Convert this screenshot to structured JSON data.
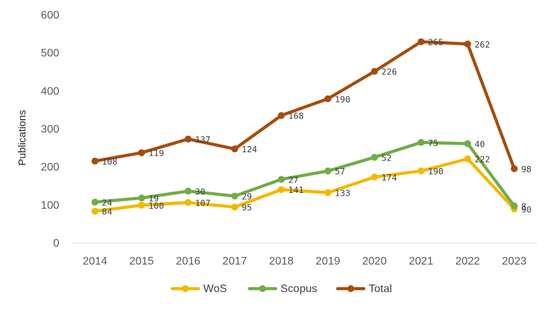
{
  "chart_data": {
    "type": "line",
    "title": "",
    "xlabel": "",
    "ylabel": "Publications",
    "ylim": [
      0,
      600
    ],
    "yticks": [
      0,
      100,
      200,
      300,
      400,
      500,
      600
    ],
    "grid": false,
    "legend": "bottom",
    "categories": [
      "2014",
      "2015",
      "2016",
      "2017",
      "2018",
      "2019",
      "2020",
      "2021",
      "2022",
      "2023"
    ],
    "series": [
      {
        "name": "WoS",
        "color": "#F2B800",
        "values": [
          84,
          100,
          107,
          95,
          141,
          133,
          174,
          190,
          222,
          90
        ],
        "labels": [
          "84",
          "100",
          "107",
          "95",
          "141",
          "133",
          "174",
          "190",
          "222",
          "90"
        ]
      },
      {
        "name": "Scopus",
        "color": "#70AD47",
        "values": [
          108,
          119,
          137,
          124,
          168,
          190,
          226,
          265,
          262,
          98
        ],
        "labels": [
          "24",
          "19",
          "30",
          "29",
          "27",
          "57",
          "52",
          "75",
          "40",
          "8"
        ]
      },
      {
        "name": "Total",
        "color": "#A64B0F",
        "values": [
          216,
          238,
          274,
          248,
          336,
          380,
          452,
          530,
          524,
          196
        ],
        "labels": [
          "108",
          "119",
          "137",
          "124",
          "168",
          "190",
          "226",
          "265",
          "262",
          "98"
        ]
      }
    ]
  }
}
